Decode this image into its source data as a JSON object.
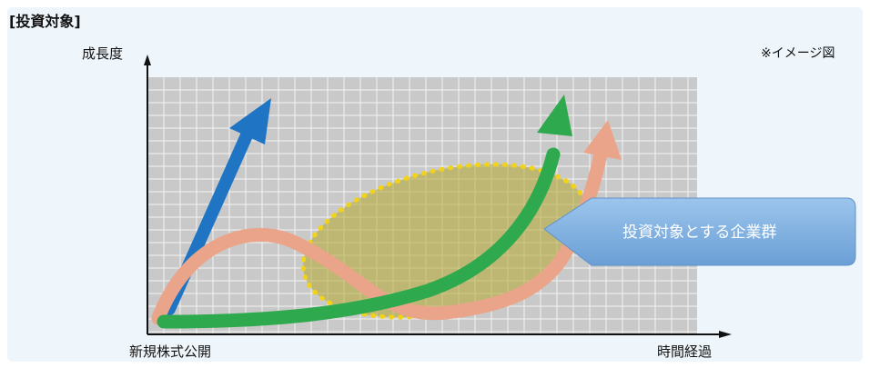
{
  "section_title": "[投資対象]",
  "y_axis_label": "成長度",
  "x_axis_start_label": "新規株式公開",
  "x_axis_end_label": "時間経過",
  "note": "※イメージ図",
  "callout_label": "投資対象とする企業群",
  "colors": {
    "panel": "#eef6fc",
    "grid_bg": "#c9c9c9",
    "grid_line": "#f2f2f2",
    "blue_arrow": "#1f74c4",
    "green_arrow": "#2fa94d",
    "salmon_arrow": "#e9a489",
    "target_ellipse": "#b3a72c",
    "ellipse_dots": "#f2d31a",
    "callout": "#7baee0"
  }
}
